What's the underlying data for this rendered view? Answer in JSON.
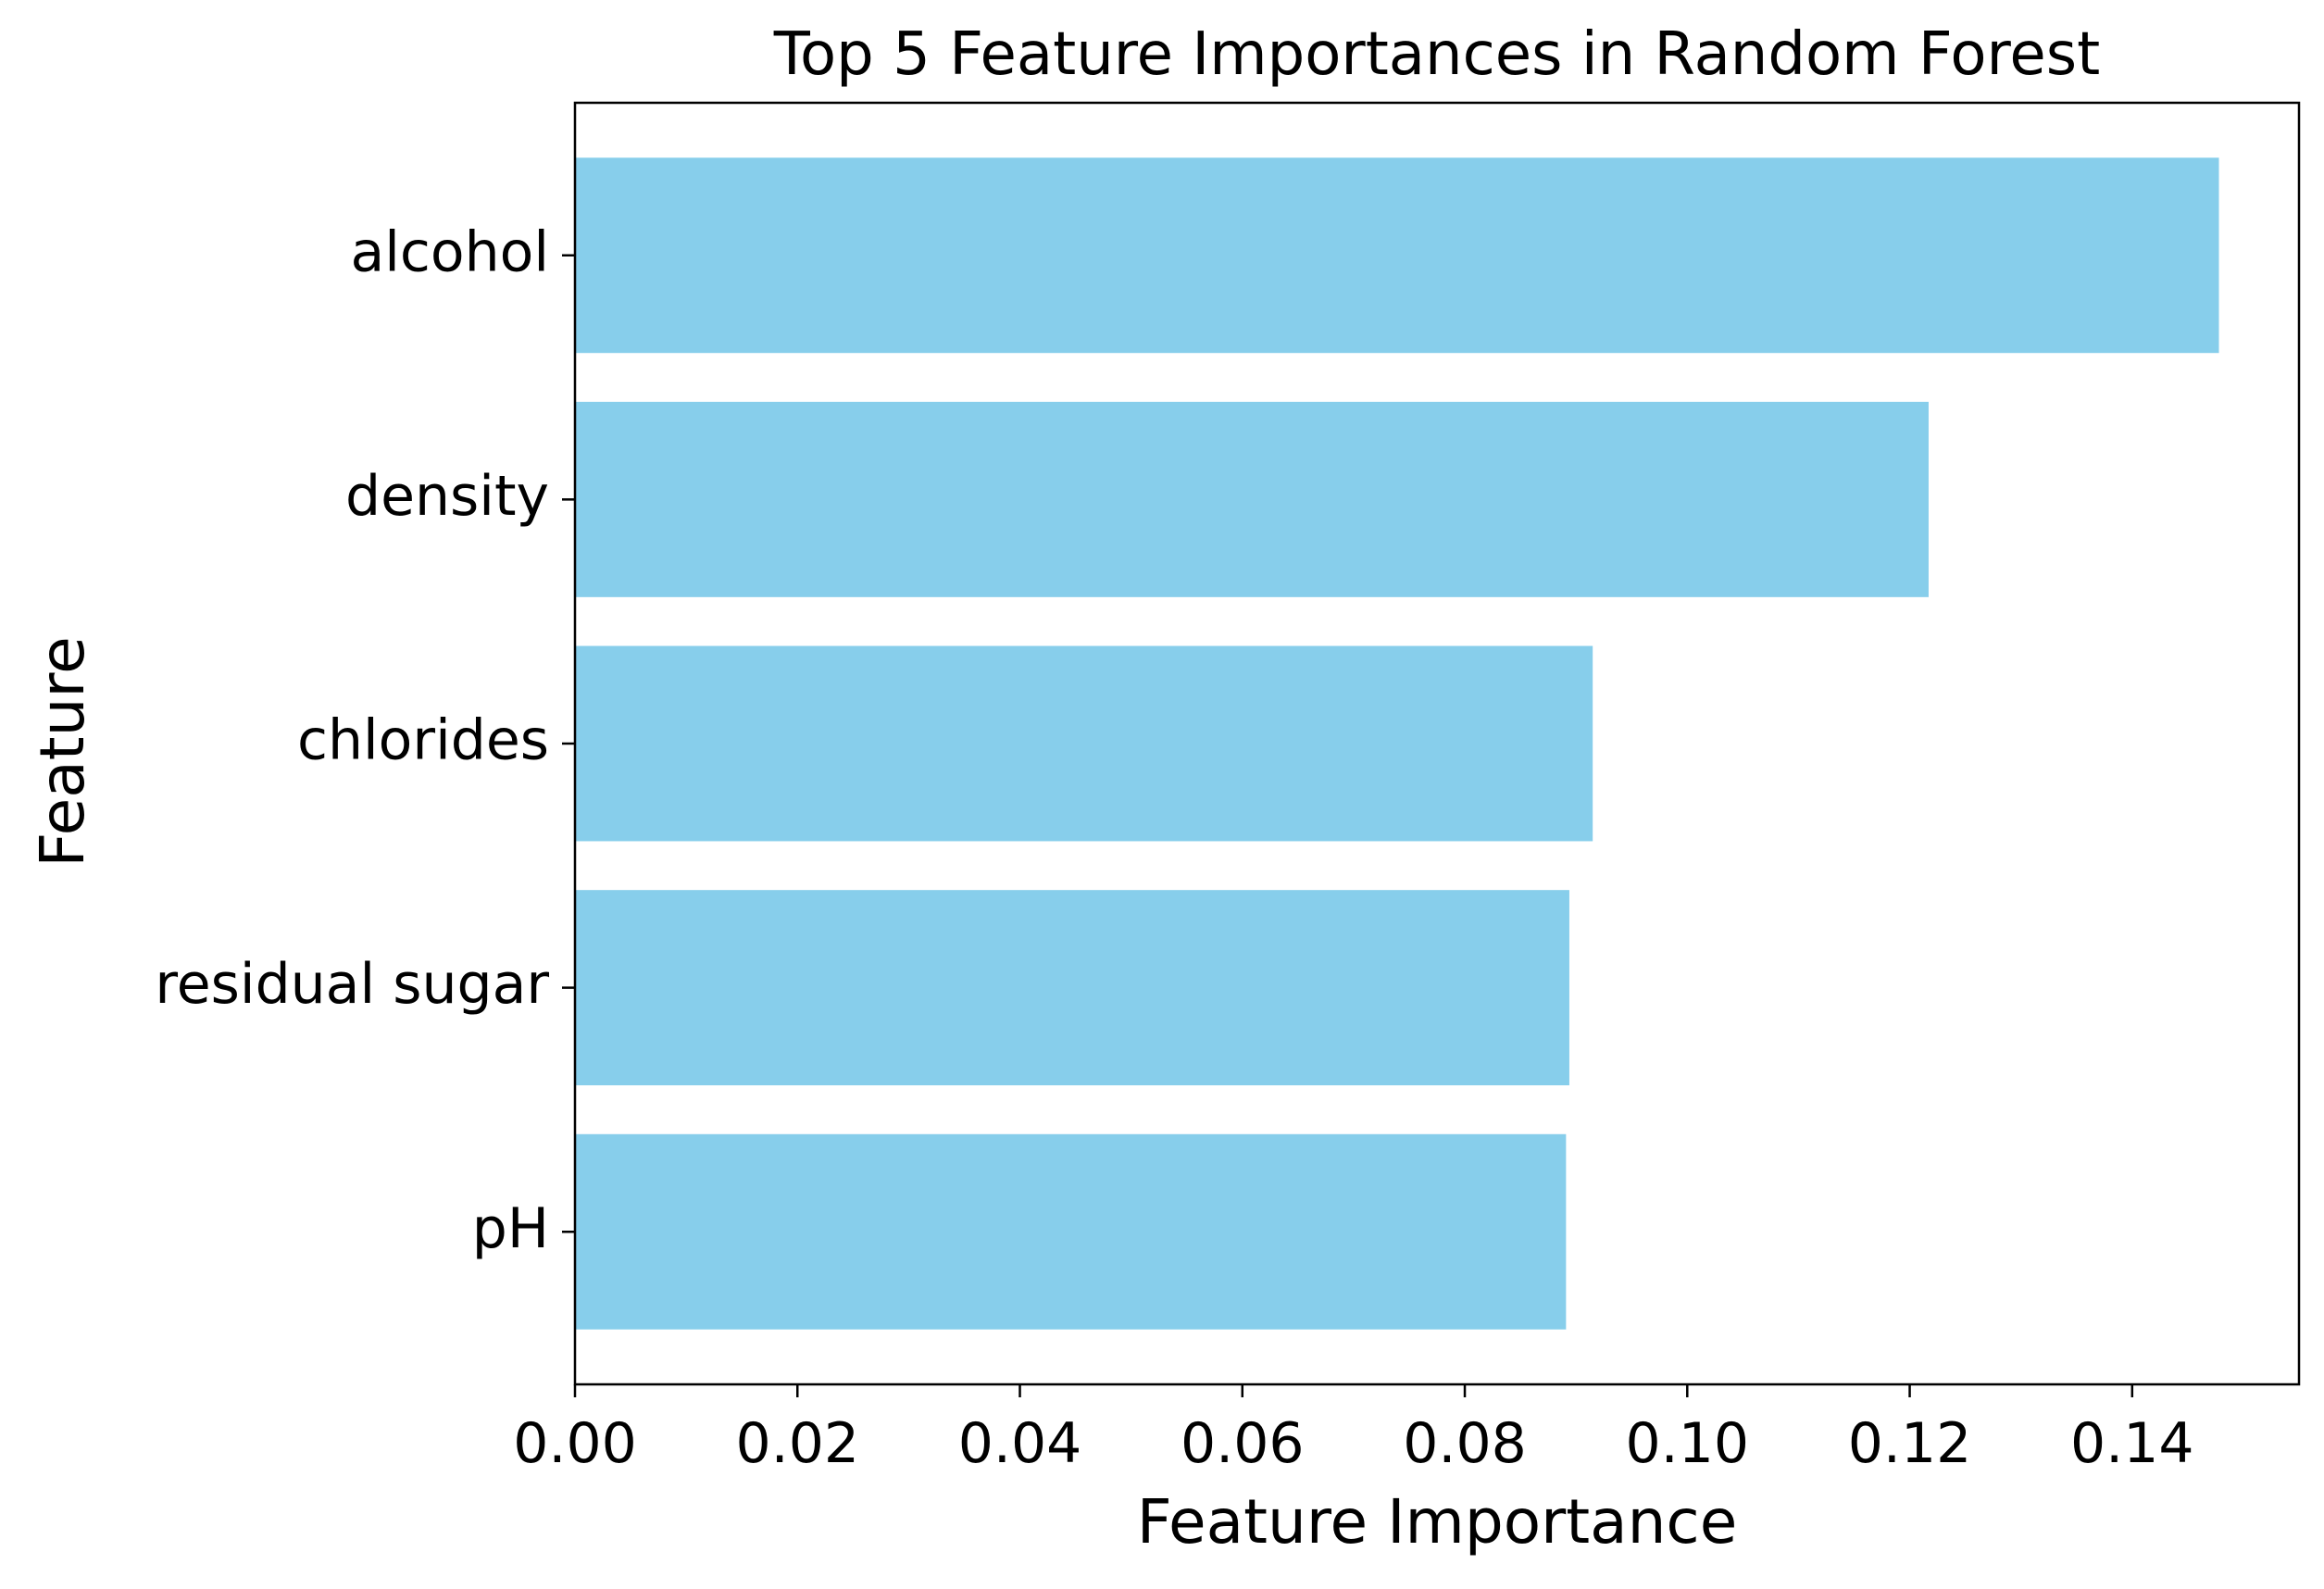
{
  "chart_data": {
    "type": "bar",
    "orientation": "horizontal",
    "title": "Top 5 Feature Importances in Random Forest",
    "xlabel": "Feature Importance",
    "ylabel": "Feature",
    "categories": [
      "alcohol",
      "density",
      "chlorides",
      "residual sugar",
      "pH"
    ],
    "values": [
      0.1478,
      0.1217,
      0.0915,
      0.0894,
      0.0891
    ],
    "xlim": [
      0,
      0.155
    ],
    "xticks": [
      "0.00",
      "0.02",
      "0.04",
      "0.06",
      "0.08",
      "0.10",
      "0.12",
      "0.14"
    ],
    "xtick_values": [
      0,
      0.02,
      0.04,
      0.06,
      0.08,
      0.1,
      0.12,
      0.14
    ],
    "grid": false,
    "legend": "none",
    "bar_color": "#87ceeb"
  }
}
